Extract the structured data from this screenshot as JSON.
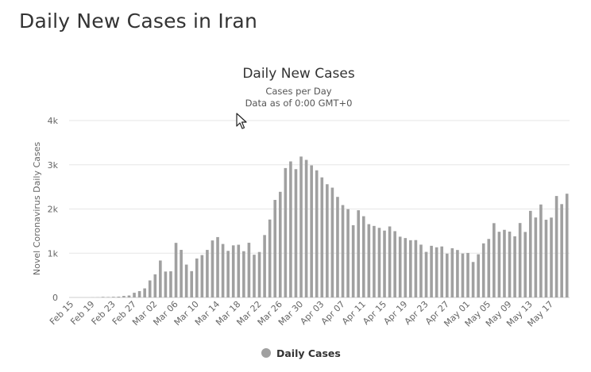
{
  "page": {
    "heading": "Daily New Cases in Iran"
  },
  "chart_data": {
    "type": "bar",
    "title": "Daily New Cases",
    "subtitle_line1": "Cases per Day",
    "subtitle_line2": "Data as of 0:00 GMT+0",
    "xlabel": "",
    "ylabel": "Novel Coronavirus Daily Cases",
    "ylim": [
      0,
      4000
    ],
    "yticks": [
      {
        "value": 0,
        "label": "0"
      },
      {
        "value": 1000,
        "label": "1k"
      },
      {
        "value": 2000,
        "label": "2k"
      },
      {
        "value": 3000,
        "label": "3k"
      },
      {
        "value": 4000,
        "label": "4k"
      }
    ],
    "grid": true,
    "legend_position": "bottom-center",
    "series_color": "#a0a0a0",
    "x_tick_labels": [
      "Feb 15",
      "Feb 19",
      "Feb 23",
      "Feb 27",
      "Mar 02",
      "Mar 06",
      "Mar 10",
      "Mar 14",
      "Mar 18",
      "Mar 22",
      "Mar 26",
      "Mar 30",
      "Apr 03",
      "Apr 07",
      "Apr 11",
      "Apr 15",
      "Apr 19",
      "Apr 23",
      "Apr 27",
      "May 01",
      "May 05",
      "May 09",
      "May 13",
      "May 17"
    ],
    "categories": [
      "Feb 15",
      "Feb 16",
      "Feb 17",
      "Feb 18",
      "Feb 19",
      "Feb 20",
      "Feb 21",
      "Feb 22",
      "Feb 23",
      "Feb 24",
      "Feb 25",
      "Feb 26",
      "Feb 27",
      "Feb 28",
      "Feb 29",
      "Mar 01",
      "Mar 02",
      "Mar 03",
      "Mar 04",
      "Mar 05",
      "Mar 06",
      "Mar 07",
      "Mar 08",
      "Mar 09",
      "Mar 10",
      "Mar 11",
      "Mar 12",
      "Mar 13",
      "Mar 14",
      "Mar 15",
      "Mar 16",
      "Mar 17",
      "Mar 18",
      "Mar 19",
      "Mar 20",
      "Mar 21",
      "Mar 22",
      "Mar 23",
      "Mar 24",
      "Mar 25",
      "Mar 26",
      "Mar 27",
      "Mar 28",
      "Mar 29",
      "Mar 30",
      "Mar 31",
      "Apr 01",
      "Apr 02",
      "Apr 03",
      "Apr 04",
      "Apr 05",
      "Apr 06",
      "Apr 07",
      "Apr 08",
      "Apr 09",
      "Apr 10",
      "Apr 11",
      "Apr 12",
      "Apr 13",
      "Apr 14",
      "Apr 15",
      "Apr 16",
      "Apr 17",
      "Apr 18",
      "Apr 19",
      "Apr 20",
      "Apr 21",
      "Apr 22",
      "Apr 23",
      "Apr 24",
      "Apr 25",
      "Apr 26",
      "Apr 27",
      "Apr 28",
      "Apr 29",
      "Apr 30",
      "May 01",
      "May 02",
      "May 03",
      "May 04",
      "May 05",
      "May 06",
      "May 07",
      "May 08",
      "May 09",
      "May 10",
      "May 11",
      "May 12",
      "May 13",
      "May 14",
      "May 15",
      "May 16",
      "May 17",
      "May 18",
      "May 19",
      "May 20"
    ],
    "series": [
      {
        "name": "Daily Cases",
        "values": [
          0,
          0,
          0,
          0,
          2,
          3,
          13,
          10,
          15,
          18,
          34,
          44,
          106,
          143,
          205,
          385,
          523,
          835,
          586,
          591,
          1234,
          1076,
          743,
          595,
          881,
          958,
          1075,
          1289,
          1365,
          1209,
          1053,
          1178,
          1192,
          1046,
          1237,
          966,
          1028,
          1411,
          1762,
          2206,
          2389,
          2926,
          3076,
          2901,
          3186,
          3111,
          2987,
          2875,
          2715,
          2560,
          2483,
          2274,
          2089,
          1997,
          1634,
          1972,
          1837,
          1657,
          1617,
          1574,
          1512,
          1606,
          1499,
          1374,
          1343,
          1294,
          1297,
          1194,
          1030,
          1168,
          1134,
          1153,
          991,
          1112,
          1073,
          993,
          1006,
          802,
          976,
          1223,
          1323,
          1680,
          1485,
          1529,
          1489,
          1383,
          1683,
          1481,
          1958,
          1808,
          2102,
          1757,
          1806,
          2294,
          2111,
          2346
        ]
      }
    ]
  }
}
